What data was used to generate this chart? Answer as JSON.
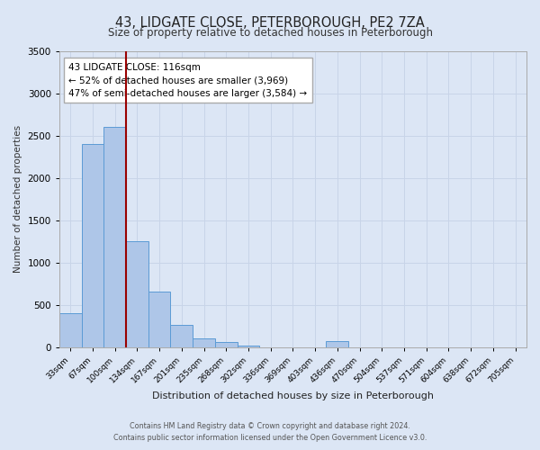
{
  "title": "43, LIDGATE CLOSE, PETERBOROUGH, PE2 7ZA",
  "subtitle": "Size of property relative to detached houses in Peterborough",
  "xlabel": "Distribution of detached houses by size in Peterborough",
  "ylabel": "Number of detached properties",
  "categories": [
    "33sqm",
    "67sqm",
    "100sqm",
    "134sqm",
    "167sqm",
    "201sqm",
    "235sqm",
    "268sqm",
    "302sqm",
    "336sqm",
    "369sqm",
    "403sqm",
    "436sqm",
    "470sqm",
    "504sqm",
    "537sqm",
    "571sqm",
    "604sqm",
    "638sqm",
    "672sqm",
    "705sqm"
  ],
  "bar_values": [
    400,
    2400,
    2600,
    1250,
    650,
    260,
    100,
    55,
    20,
    0,
    0,
    0,
    70,
    0,
    0,
    0,
    0,
    0,
    0,
    0,
    0
  ],
  "bar_color": "#aec6e8",
  "bar_edge_color": "#5b9bd5",
  "ylim": [
    0,
    3500
  ],
  "yticks": [
    0,
    500,
    1000,
    1500,
    2000,
    2500,
    3000,
    3500
  ],
  "annotation_line1": "43 LIDGATE CLOSE: 116sqm",
  "annotation_line2": "← 52% of detached houses are smaller (3,969)",
  "annotation_line3": "47% of semi-detached houses are larger (3,584) →",
  "grid_color": "#c8d4e8",
  "background_color": "#dce6f5",
  "fig_background_color": "#dce6f5",
  "footer_line1": "Contains HM Land Registry data © Crown copyright and database right 2024.",
  "footer_line2": "Contains public sector information licensed under the Open Government Licence v3.0."
}
